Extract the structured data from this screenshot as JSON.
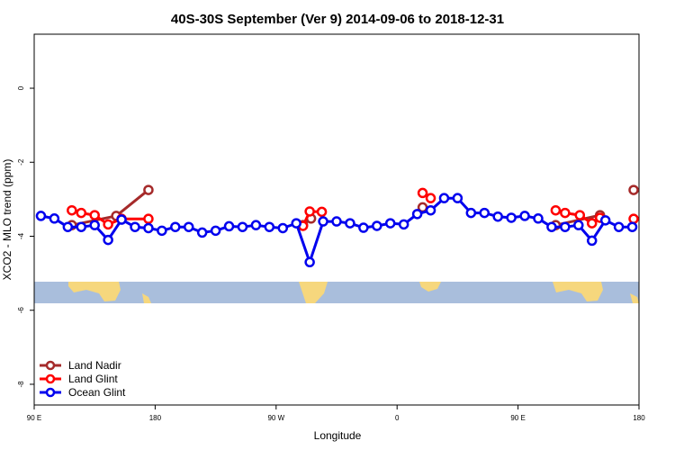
{
  "chart_data": {
    "type": "line",
    "title": "40S-30S September (Ver 9)   2014-09-06 to 2018-12-31",
    "xlabel": "Longitude",
    "ylabel": "XCO2 - MLO trend (ppm)",
    "xlim": [
      90,
      540
    ],
    "xticks": [
      {
        "value": 90,
        "label": "90 E"
      },
      180,
      {
        "value": 270,
        "label": "90 W"
      },
      {
        "value": 360,
        "label": "0"
      },
      {
        "value": 450,
        "label": "90 E"
      },
      {
        "value": 540,
        "label": "180"
      }
    ],
    "ylim": [
      -8.56,
      1.46
    ],
    "yticks": [
      0,
      -2,
      -4,
      -6,
      -8
    ],
    "legend": "bottom-left",
    "series": [
      {
        "name": "Land Nadir",
        "color": "#a52a2a",
        "x": [
          118,
          151,
          175,
          null,
          290,
          296,
          null,
          379,
          null,
          478,
          511,
          null,
          536
        ],
        "values": [
          -3.7,
          -3.45,
          -2.75,
          null,
          -3.7,
          -3.52,
          null,
          -3.22,
          null,
          -3.7,
          -3.43,
          null,
          -2.75
        ]
      },
      {
        "name": "Land Glint",
        "color": "#ff0000",
        "x": [
          118,
          125,
          135,
          145,
          155,
          175,
          null,
          290,
          295,
          304,
          null,
          379,
          385,
          null,
          478,
          485,
          496,
          505,
          511,
          null,
          536
        ],
        "values": [
          -3.3,
          -3.37,
          -3.43,
          -3.68,
          -3.53,
          -3.53,
          null,
          -3.72,
          -3.33,
          -3.34,
          null,
          -2.83,
          -2.97,
          null,
          -3.3,
          -3.37,
          -3.43,
          -3.65,
          -3.5,
          null,
          -3.53
        ]
      },
      {
        "name": "Ocean Glint",
        "color": "#0000ee",
        "x": [
          95,
          105,
          115,
          125,
          135,
          145,
          155,
          165,
          175,
          185,
          195,
          205,
          215,
          225,
          235,
          245,
          255,
          265,
          275,
          285,
          295,
          305,
          315,
          325,
          335,
          345,
          355,
          365,
          375,
          385,
          395,
          405,
          415,
          425,
          435,
          445,
          455,
          465,
          475,
          485,
          495,
          505,
          515,
          525,
          535
        ],
        "values": [
          -3.45,
          -3.52,
          -3.75,
          -3.75,
          -3.7,
          -4.1,
          -3.55,
          -3.75,
          -3.78,
          -3.85,
          -3.75,
          -3.75,
          -3.9,
          -3.85,
          -3.73,
          -3.75,
          -3.7,
          -3.75,
          -3.78,
          -3.65,
          -4.7,
          -3.6,
          -3.6,
          -3.65,
          -3.77,
          -3.72,
          -3.65,
          -3.68,
          -3.4,
          -3.3,
          -2.97,
          -2.97,
          -3.37,
          -3.37,
          -3.47,
          -3.5,
          -3.45,
          -3.52,
          -3.75,
          -3.75,
          -3.7,
          -4.12,
          -3.57,
          -3.75,
          -3.75
        ]
      }
    ]
  }
}
